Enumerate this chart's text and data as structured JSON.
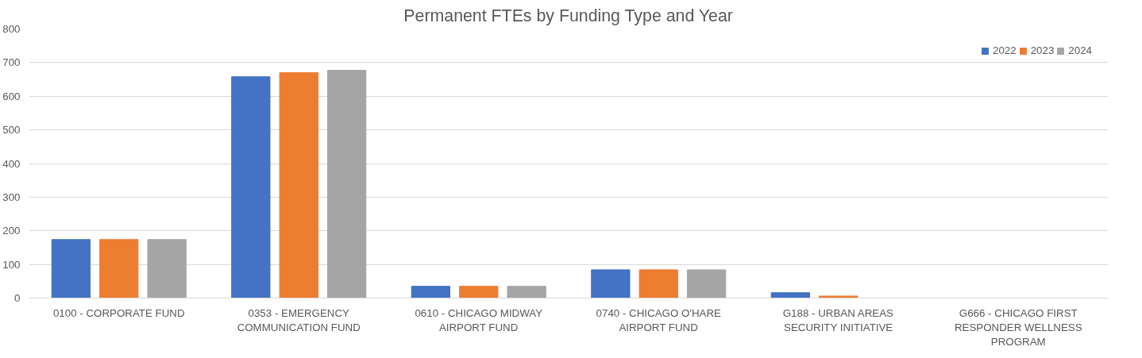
{
  "chart_data": {
    "type": "bar",
    "title": "Permanent FTEs by Funding Type and Year",
    "categories": [
      "0100 - CORPORATE FUND",
      "0353 - EMERGENCY COMMUNICATION FUND",
      "0610 - CHICAGO MIDWAY AIRPORT FUND",
      "0740 - CHICAGO O'HARE AIRPORT FUND",
      "G188 - URBAN AREAS SECURITY INITIATIVE",
      "G666 - CHICAGO FIRST RESPONDER WELLNESS PROGRAM"
    ],
    "series": [
      {
        "name": "2022",
        "color": "#4472c4",
        "values": [
          174,
          658,
          35,
          84,
          16,
          0
        ]
      },
      {
        "name": "2023",
        "color": "#ed7d31",
        "values": [
          174,
          670,
          35,
          84,
          6,
          0
        ]
      },
      {
        "name": "2024",
        "color": "#a5a5a5",
        "values": [
          174,
          677,
          35,
          84,
          0,
          0
        ]
      }
    ],
    "ylim": [
      0,
      800
    ],
    "yticks": [
      0,
      100,
      200,
      300,
      400,
      500,
      600,
      700,
      800
    ],
    "grid": "y",
    "legend": "top right"
  }
}
